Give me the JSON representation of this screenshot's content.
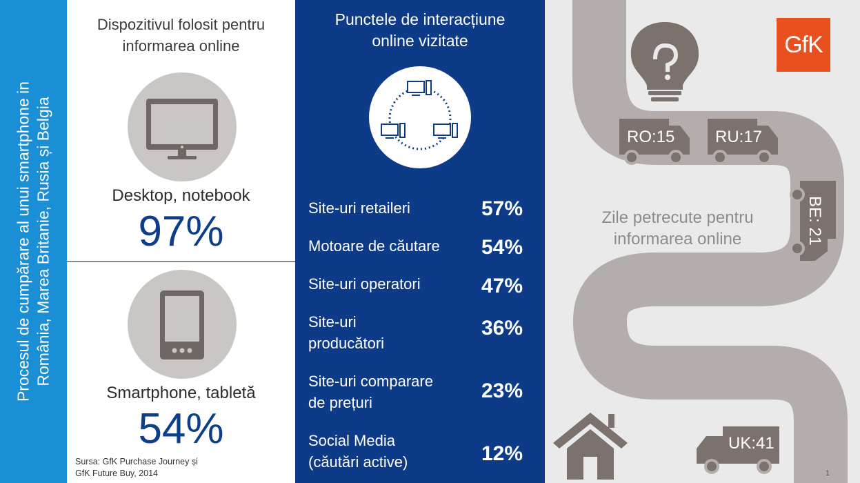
{
  "side_title": {
    "line1": "Procesul de cumpărare al unui smartphone in",
    "line2": "România, Marea Britanie, Rusia și Belgia"
  },
  "devices": {
    "heading_line1": "Dispozitivul folosit pentru",
    "heading_line2": "informarea online",
    "desktop": {
      "label": "Desktop, notebook",
      "value": "97%",
      "icon": "desktop-monitor-icon"
    },
    "mobile": {
      "label": "Smartphone, tabletă",
      "value": "54%",
      "icon": "tablet-icon"
    },
    "source_line1": "Sursa: GfK Purchase Journey și",
    "source_line2": "GfK Future Buy, 2014"
  },
  "touchpoints": {
    "heading_line1": "Punctele de interacțiune",
    "heading_line2": "online vizitate",
    "icon": "network-computers-icon",
    "rows": [
      {
        "line1": "Site-uri retaileri",
        "line2": "",
        "pct": "57%"
      },
      {
        "line1": "Motoare de căutare",
        "line2": "",
        "pct": "54%"
      },
      {
        "line1": "Site-uri operatori",
        "line2": "",
        "pct": "47%"
      },
      {
        "line1": "Site-uri",
        "line2": "producători",
        "pct": "36%"
      },
      {
        "line1": "Site-uri comparare",
        "line2": "de prețuri",
        "pct": "23%"
      },
      {
        "line1": "Social Media",
        "line2": "(căutări active)",
        "pct": "12%"
      }
    ]
  },
  "road": {
    "logo": "GfK",
    "trucks": [
      {
        "label": "RO:15"
      },
      {
        "label": "RU:17"
      },
      {
        "label": "BE: 21"
      },
      {
        "label": "UK:41"
      }
    ],
    "days_line1": "Zile petrecute pentru",
    "days_line2": "informarea online",
    "page_number": "1",
    "colors": {
      "road": "#b3aeab",
      "logo_bg": "#e8501f",
      "icon": "#7b726e"
    }
  }
}
